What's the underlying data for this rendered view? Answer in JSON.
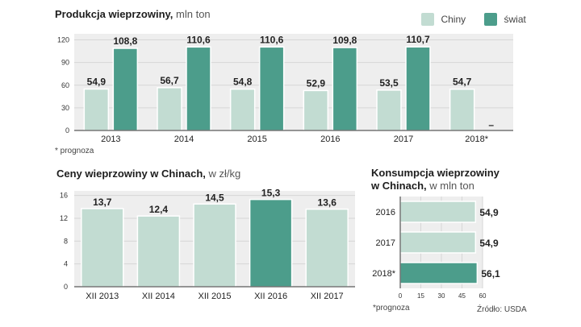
{
  "colors": {
    "china": "#c2dcd2",
    "world": "#4c9d8b",
    "highlight": "#4c9d8b",
    "panel": "#eeeeee",
    "grid": "#d6d6d6",
    "text": "#222222"
  },
  "chart_data": [
    {
      "type": "bar",
      "id": "production",
      "title": "Produkcja wieprzowiny,",
      "subtitle": "mln ton",
      "categories": [
        "2013",
        "2014",
        "2015",
        "2016",
        "2017",
        "2018*"
      ],
      "series": [
        {
          "name": "Chiny",
          "values": [
            54.9,
            56.7,
            54.8,
            52.9,
            53.5,
            54.7
          ],
          "labels": [
            "54,9",
            "56,7",
            "54,8",
            "52,9",
            "53,5",
            "54,7"
          ]
        },
        {
          "name": "świat",
          "values": [
            108.8,
            110.6,
            110.6,
            109.8,
            110.7,
            null
          ],
          "labels": [
            "108,8",
            "110,6",
            "110,6",
            "109,8",
            "110,7",
            "–"
          ]
        }
      ],
      "yticks": [
        0,
        30,
        60,
        90,
        120
      ],
      "ylim": [
        0,
        128
      ],
      "legend": "top-right",
      "footnote": "* prognoza"
    },
    {
      "type": "bar",
      "id": "prices",
      "title": "Ceny wieprzowiny w Chinach,",
      "subtitle": "w zł/kg",
      "categories": [
        "XII 2013",
        "XII 2014",
        "XII 2015",
        "XII 2016",
        "XII 2017"
      ],
      "values": [
        13.7,
        12.4,
        14.5,
        15.3,
        13.6
      ],
      "labels": [
        "13,7",
        "12,4",
        "14,5",
        "15,3",
        "13,6"
      ],
      "highlight_index": 3,
      "yticks": [
        0,
        4,
        8,
        12,
        16
      ],
      "ylim": [
        0,
        16.8
      ]
    },
    {
      "type": "bar",
      "orientation": "horizontal",
      "id": "consumption",
      "title_line1": "Konsumpcja wieprzowiny",
      "title_line2": "w Chinach,",
      "subtitle": "w mln ton",
      "categories": [
        "2016",
        "2017",
        "2018*"
      ],
      "values": [
        54.9,
        54.9,
        56.1
      ],
      "labels": [
        "54,9",
        "54,9",
        "56,1"
      ],
      "highlight_index": 2,
      "xticks": [
        0,
        15,
        30,
        45,
        60
      ],
      "xlim": [
        0,
        60
      ],
      "footnote": "*prognoza",
      "source": "Źródło: USDA"
    }
  ]
}
